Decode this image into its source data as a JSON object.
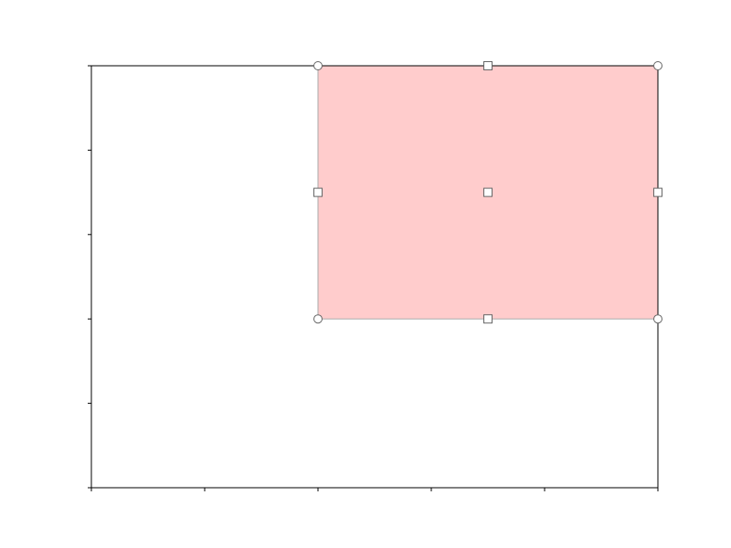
{
  "chart_data": {
    "type": "area",
    "title": "",
    "xlabel": "",
    "ylabel": "",
    "grid": false,
    "xlim": [
      0,
      1
    ],
    "ylim": [
      0,
      1
    ],
    "x_ticks": [
      0,
      0.2,
      0.4,
      0.6,
      0.8,
      1.0
    ],
    "y_ticks": [
      0,
      0.2,
      0.4,
      0.6,
      0.8,
      1.0
    ],
    "tick_labels_visible": false,
    "selection": {
      "x_range": [
        0.4,
        1.0
      ],
      "y_range": [
        0.4,
        1.0
      ],
      "fill_color": "#ffcccc",
      "edge_color": "#aaaaaa",
      "corner_handles": [
        {
          "x": 0.4,
          "y": 0.4
        },
        {
          "x": 0.4,
          "y": 1.0
        },
        {
          "x": 1.0,
          "y": 0.4
        },
        {
          "x": 1.0,
          "y": 1.0
        }
      ],
      "edge_handles": [
        {
          "x": 0.7,
          "y": 1.0
        },
        {
          "x": 0.4,
          "y": 0.7
        },
        {
          "x": 1.0,
          "y": 0.7
        },
        {
          "x": 0.7,
          "y": 0.4
        }
      ],
      "center_handle": {
        "x": 0.7,
        "y": 0.7
      }
    }
  }
}
